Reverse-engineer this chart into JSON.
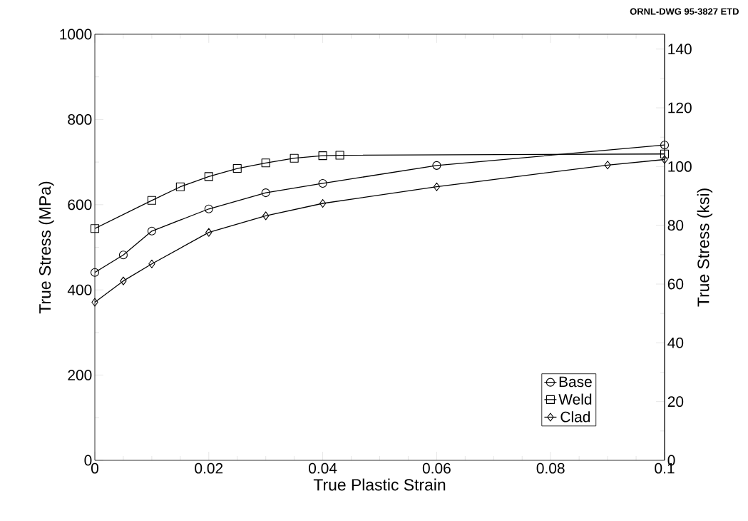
{
  "chart_data": {
    "type": "line",
    "xlabel": "True Plastic Strain",
    "ylabel": "True Stress (MPa)",
    "y2label": "True Stress (ksi)",
    "annotations": [
      "ORNL-DWG 95-3827  ETD"
    ],
    "xlim": [
      0,
      0.1
    ],
    "xticks": [
      0,
      0.02,
      0.04,
      0.06,
      0.08,
      0.1
    ],
    "ylim": [
      0,
      1000
    ],
    "yticks": [
      0,
      200,
      400,
      600,
      800,
      1000
    ],
    "y2lim": [
      0,
      145.04
    ],
    "y2ticks": [
      0,
      20,
      40,
      60,
      80,
      100,
      120,
      140
    ],
    "legend": "bottom right",
    "line_style": "solid",
    "series": [
      {
        "name": "Base",
        "color": "#000000",
        "marker": "circle",
        "x": [
          0,
          0.005,
          0.01,
          0.02,
          0.03,
          0.04,
          0.06,
          0.1
        ],
        "values": [
          441,
          482,
          538,
          590,
          628,
          650,
          692,
          740
        ]
      },
      {
        "name": "Weld",
        "color": "#000000",
        "marker": "square",
        "x": [
          0,
          0.01,
          0.015,
          0.02,
          0.025,
          0.03,
          0.035,
          0.04,
          0.043,
          0.1
        ],
        "values": [
          544,
          610,
          642,
          666,
          685,
          698,
          709,
          715,
          716,
          719
        ]
      },
      {
        "name": "Clad",
        "color": "#000000",
        "marker": "diamond",
        "x": [
          0,
          0.005,
          0.01,
          0.02,
          0.03,
          0.04,
          0.06,
          0.09,
          0.1
        ],
        "values": [
          371,
          421,
          461,
          535,
          574,
          603,
          642,
          693,
          706
        ]
      }
    ]
  }
}
